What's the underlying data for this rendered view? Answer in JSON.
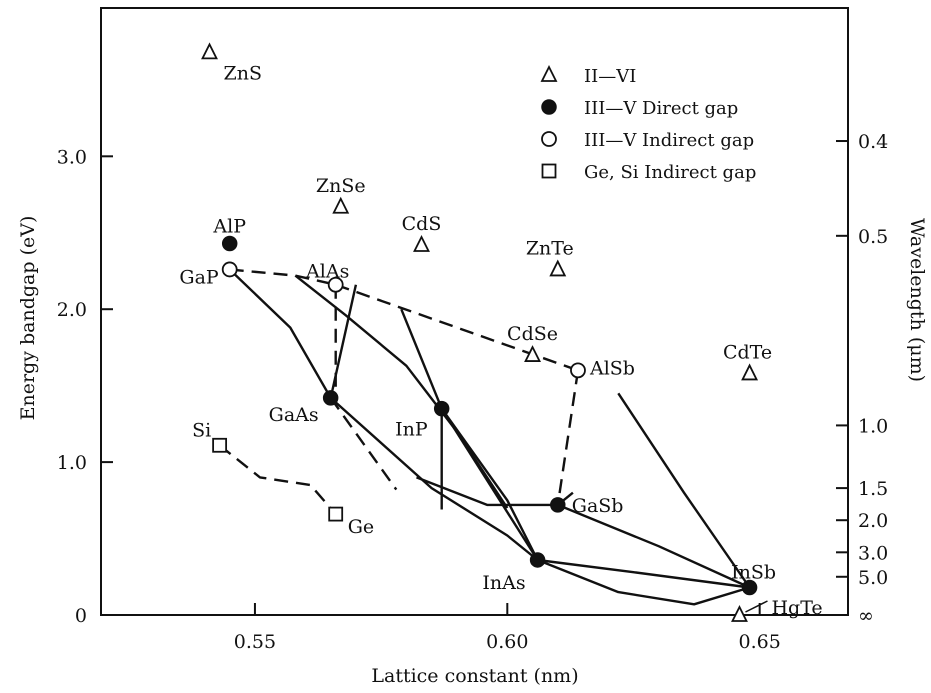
{
  "chart_data": {
    "type": "scatter",
    "xlabel": "Lattice constant (nm)",
    "ylabel": "Energy bandgap (eV)",
    "y2label": "Wavelength (μm)",
    "xlim": [
      0.5195,
      0.6675
    ],
    "ylim": [
      0,
      3.97
    ],
    "x_ticks": [
      0.55,
      0.6,
      0.65
    ],
    "x_tick_labels": [
      "0.55",
      "0.60",
      "0.65"
    ],
    "y_ticks": [
      0,
      1.0,
      2.0,
      3.0
    ],
    "y_tick_labels": [
      "0",
      "1.0",
      "2.0",
      "3.0"
    ],
    "wavelength_ticks": [
      {
        "label": "0.4",
        "energy": 3.1
      },
      {
        "label": "0.5",
        "energy": 2.48
      },
      {
        "label": "1.0",
        "energy": 1.24
      },
      {
        "label": "1.5",
        "energy": 0.83
      },
      {
        "label": "2.0",
        "energy": 0.62
      },
      {
        "label": "3.0",
        "energy": 0.41
      },
      {
        "label": "5.0",
        "energy": 0.25
      },
      {
        "label": "∞",
        "energy": 0
      }
    ],
    "grid": false,
    "legend_position": "top-right",
    "legend": [
      {
        "label": "II—VI",
        "marker": "triangle"
      },
      {
        "label": "III—V Direct gap",
        "marker": "filled-circle"
      },
      {
        "label": "III—V Indirect gap",
        "marker": "open-circle"
      },
      {
        "label": "Ge, Si Indirect gap",
        "marker": "square"
      }
    ],
    "series": [
      {
        "name": "II—VI",
        "marker": "triangle",
        "points": [
          {
            "label": "ZnS",
            "x": 0.541,
            "y": 3.68
          },
          {
            "label": "ZnSe",
            "x": 0.567,
            "y": 2.67
          },
          {
            "label": "CdS",
            "x": 0.583,
            "y": 2.42
          },
          {
            "label": "ZnTe",
            "x": 0.61,
            "y": 2.26
          },
          {
            "label": "CdSe",
            "x": 0.605,
            "y": 1.7
          },
          {
            "label": "CdTe",
            "x": 0.648,
            "y": 1.58
          },
          {
            "label": "HgTe",
            "x": 0.646,
            "y": 0.0
          }
        ]
      },
      {
        "name": "III—V Direct gap",
        "marker": "filled-circle",
        "points": [
          {
            "label": "AlP",
            "x": 0.545,
            "y": 2.43
          },
          {
            "label": "GaAs",
            "x": 0.565,
            "y": 1.42
          },
          {
            "label": "InP",
            "x": 0.587,
            "y": 1.35
          },
          {
            "label": "GaSb",
            "x": 0.61,
            "y": 0.72
          },
          {
            "label": "InAs",
            "x": 0.606,
            "y": 0.36
          },
          {
            "label": "InSb",
            "x": 0.648,
            "y": 0.18
          }
        ]
      },
      {
        "name": "III—V Indirect gap",
        "marker": "open-circle",
        "points": [
          {
            "label": "GaP",
            "x": 0.545,
            "y": 2.26
          },
          {
            "label": "AlAs",
            "x": 0.566,
            "y": 2.16
          },
          {
            "label": "AlSb",
            "x": 0.614,
            "y": 1.6
          }
        ]
      },
      {
        "name": "Ge, Si Indirect gap",
        "marker": "square",
        "points": [
          {
            "label": "Si",
            "x": 0.543,
            "y": 1.11
          },
          {
            "label": "Ge",
            "x": 0.566,
            "y": 0.66
          }
        ]
      }
    ],
    "curves": [
      {
        "style": "dashed",
        "x": [
          0.545,
          0.558,
          0.566
        ],
        "y": [
          2.26,
          2.22,
          2.16
        ]
      },
      {
        "style": "dashed",
        "x": [
          0.566,
          0.566
        ],
        "y": [
          2.16,
          1.42
        ]
      },
      {
        "style": "dashed",
        "x": [
          0.566,
          0.614
        ],
        "y": [
          2.16,
          1.6
        ]
      },
      {
        "style": "dashed",
        "x": [
          0.614,
          0.61
        ],
        "y": [
          1.6,
          0.72
        ]
      },
      {
        "style": "dashed",
        "x": [
          0.543,
          0.551,
          0.561,
          0.566
        ],
        "y": [
          1.11,
          0.9,
          0.85,
          0.66
        ]
      },
      {
        "style": "dashed",
        "x": [
          0.565,
          0.578
        ],
        "y": [
          1.42,
          0.82
        ]
      },
      {
        "style": "solid",
        "x": [
          0.545,
          0.557,
          0.565
        ],
        "y": [
          2.26,
          1.88,
          1.42
        ]
      },
      {
        "style": "solid",
        "x": [
          0.558,
          0.568,
          0.58,
          0.59,
          0.6
        ],
        "y": [
          2.22,
          1.96,
          1.63,
          1.2,
          0.7
        ]
      },
      {
        "style": "solid",
        "x": [
          0.565,
          0.57
        ],
        "y": [
          1.42,
          2.16
        ]
      },
      {
        "style": "solid",
        "x": [
          0.565,
          0.585,
          0.6,
          0.606
        ],
        "y": [
          1.42,
          0.83,
          0.52,
          0.36
        ]
      },
      {
        "style": "solid",
        "x": [
          0.579,
          0.587
        ],
        "y": [
          2.0,
          1.35
        ]
      },
      {
        "style": "solid",
        "x": [
          0.587,
          0.606
        ],
        "y": [
          1.35,
          0.36
        ]
      },
      {
        "style": "solid",
        "x": [
          0.587,
          0.587
        ],
        "y": [
          1.35,
          0.69
        ]
      },
      {
        "style": "solid",
        "x": [
          0.587,
          0.6,
          0.606
        ],
        "y": [
          1.35,
          0.75,
          0.36
        ]
      },
      {
        "style": "solid",
        "x": [
          0.582,
          0.596,
          0.61
        ],
        "y": [
          0.9,
          0.72,
          0.72
        ]
      },
      {
        "style": "solid",
        "x": [
          0.61,
          0.613
        ],
        "y": [
          0.72,
          0.8
        ]
      },
      {
        "style": "solid",
        "x": [
          0.61,
          0.63,
          0.648
        ],
        "y": [
          0.72,
          0.45,
          0.18
        ]
      },
      {
        "style": "solid",
        "x": [
          0.606,
          0.625,
          0.648
        ],
        "y": [
          0.36,
          0.28,
          0.18
        ]
      },
      {
        "style": "solid",
        "x": [
          0.622,
          0.635,
          0.648
        ],
        "y": [
          1.45,
          0.8,
          0.18
        ]
      },
      {
        "style": "solid",
        "x": [
          0.606,
          0.622,
          0.637,
          0.648
        ],
        "y": [
          0.36,
          0.15,
          0.07,
          0.18
        ]
      }
    ]
  }
}
